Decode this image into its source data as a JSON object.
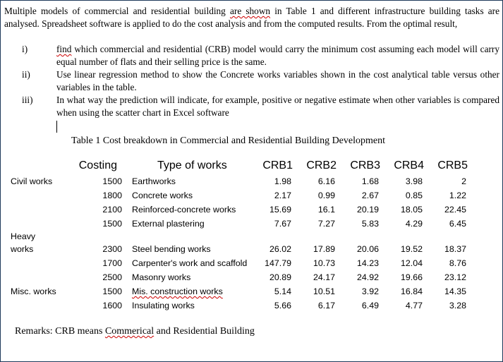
{
  "intro": {
    "part1": "Multiple models of commercial and residential building ",
    "flagged": "are shown",
    "part2": " in Table 1 and different infrastructure building tasks are analysed. Spreadsheet software is applied to do the cost analysis and from the computed results. From the optimal result,"
  },
  "list": [
    {
      "num": "i)",
      "flagged": "find",
      "text": " which commercial and residential (CRB) model would carry the minimum cost assuming each model will carry equal number of flats and their selling price is the same."
    },
    {
      "num": "ii)",
      "flagged": "",
      "text": "Use linear regression method to show the Concrete works variables shown in the cost analytical table versus other variables in the table."
    },
    {
      "num": "iii)",
      "flagged": "",
      "text": "In what way the prediction will indicate, for example, positive or negative estimate when other variables is compared when using the scatter chart in Excel software"
    }
  ],
  "caption": "Table 1  Cost breakdown in Commercial and Residential Building Development",
  "table": {
    "headers": [
      "Costing",
      "Type of works",
      "CRB1",
      "CRB2",
      "CRB3",
      "CRB4",
      "CRB5"
    ],
    "rows": [
      {
        "group": "Civil works",
        "costing": "1500",
        "type": "Earthworks",
        "values": [
          "1.98",
          "6.16",
          "1.68",
          "3.98",
          "2"
        ]
      },
      {
        "group": "",
        "costing": "1800",
        "type": "Concrete works",
        "values": [
          "2.17",
          "0.99",
          "2.67",
          "0.85",
          "1.22"
        ]
      },
      {
        "group": "",
        "costing": "2100",
        "type": "Reinforced-concrete works",
        "values": [
          "15.69",
          "16.1",
          "20.19",
          "18.05",
          "22.45"
        ]
      },
      {
        "group": "",
        "costing": "1500",
        "type": "External plastering",
        "values": [
          "7.67",
          "7.27",
          "5.83",
          "4.29",
          "6.45"
        ]
      },
      {
        "group": "Heavy",
        "costing": "",
        "type": "",
        "values": []
      },
      {
        "group": "works",
        "costing": "2300",
        "type": "Steel bending works",
        "values": [
          "26.02",
          "17.89",
          "20.06",
          "19.52",
          "18.37"
        ]
      },
      {
        "group": "",
        "costing": "1700",
        "type": "Carpenter's work and scaffold",
        "values": [
          "147.79",
          "10.73",
          "14.23",
          "12.04",
          "8.76"
        ]
      },
      {
        "group": "",
        "costing": "2500",
        "type": "Masonry works",
        "values": [
          "20.89",
          "24.17",
          "24.92",
          "19.66",
          "23.12"
        ]
      },
      {
        "group": "Misc. works",
        "costing": "1500",
        "type": "Mis. construction works",
        "values": [
          "5.14",
          "10.51",
          "3.92",
          "16.84",
          "14.35"
        ]
      },
      {
        "group": "",
        "costing": "1600",
        "type": "Insulating works",
        "values": [
          "5.66",
          "6.17",
          "6.49",
          "4.77",
          "3.28"
        ]
      }
    ]
  },
  "remarks": {
    "prefix": "Remarks: CRB means ",
    "flagged": "Commerical",
    "suffix": " and Residential Building"
  }
}
